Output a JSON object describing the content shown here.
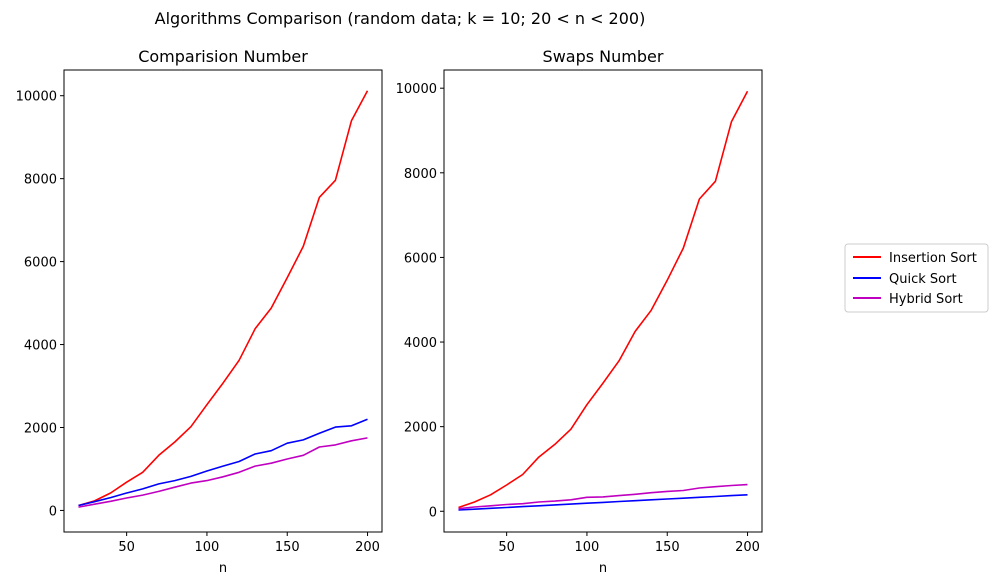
{
  "figure": {
    "suptitle": "Algorithms Comparison (random data;  k = 10;  20 < n < 200)"
  },
  "colors": {
    "insertion": "#ff0000",
    "quick": "#0000ff",
    "hybrid": "#c000c0"
  },
  "legend": {
    "items": [
      {
        "label": "Insertion Sort",
        "color": "#ff0000"
      },
      {
        "label": "Quick Sort",
        "color": "#0000ff"
      },
      {
        "label": "Hybrid Sort",
        "color": "#c000c0"
      }
    ]
  },
  "chart_data": [
    {
      "type": "line",
      "title": "Comparision Number",
      "xlabel": "n",
      "ylabel": "",
      "xlim": [
        11,
        209
      ],
      "ylim": [
        -520,
        10620
      ],
      "xticks": [
        50,
        100,
        150,
        200
      ],
      "yticks": [
        0,
        2000,
        4000,
        6000,
        8000,
        10000
      ],
      "x": [
        20,
        30,
        40,
        50,
        60,
        70,
        80,
        90,
        100,
        110,
        120,
        130,
        140,
        150,
        160,
        170,
        180,
        190,
        200
      ],
      "series": [
        {
          "name": "Insertion Sort",
          "color": "#ff0000",
          "values": [
            120,
            230,
            420,
            680,
            920,
            1330,
            1650,
            2020,
            2550,
            3070,
            3620,
            4380,
            4880,
            5610,
            6370,
            7550,
            7960,
            9400,
            10120
          ]
        },
        {
          "name": "Quick Sort",
          "color": "#0000ff",
          "values": [
            120,
            210,
            310,
            420,
            520,
            640,
            720,
            820,
            950,
            1070,
            1180,
            1360,
            1440,
            1620,
            1700,
            1860,
            2010,
            2040,
            2200
          ]
        },
        {
          "name": "Hybrid Sort",
          "color": "#c000c0",
          "values": [
            80,
            150,
            220,
            300,
            370,
            460,
            560,
            660,
            720,
            810,
            920,
            1070,
            1140,
            1240,
            1330,
            1530,
            1580,
            1680,
            1750
          ]
        }
      ]
    },
    {
      "type": "line",
      "title": "Swaps Number",
      "xlabel": "n",
      "ylabel": "",
      "xlim": [
        11,
        209
      ],
      "ylim": [
        -490,
        10430
      ],
      "xticks": [
        50,
        100,
        150,
        200
      ],
      "yticks": [
        0,
        2000,
        4000,
        6000,
        8000,
        10000
      ],
      "x": [
        20,
        30,
        40,
        50,
        60,
        70,
        80,
        90,
        100,
        110,
        120,
        130,
        140,
        150,
        160,
        170,
        180,
        190,
        200
      ],
      "series": [
        {
          "name": "Insertion Sort",
          "color": "#ff0000",
          "values": [
            90,
            220,
            390,
            620,
            870,
            1280,
            1580,
            1940,
            2520,
            3030,
            3560,
            4250,
            4750,
            5460,
            6220,
            7380,
            7800,
            9210,
            9930
          ]
        },
        {
          "name": "Quick Sort",
          "color": "#0000ff",
          "values": [
            30,
            50,
            70,
            90,
            110,
            130,
            150,
            170,
            190,
            210,
            230,
            250,
            270,
            290,
            310,
            330,
            350,
            370,
            390
          ]
        },
        {
          "name": "Hybrid Sort",
          "color": "#c000c0",
          "values": [
            60,
            100,
            130,
            160,
            180,
            220,
            240,
            270,
            330,
            340,
            370,
            400,
            440,
            470,
            490,
            550,
            580,
            610,
            630
          ]
        }
      ]
    }
  ]
}
